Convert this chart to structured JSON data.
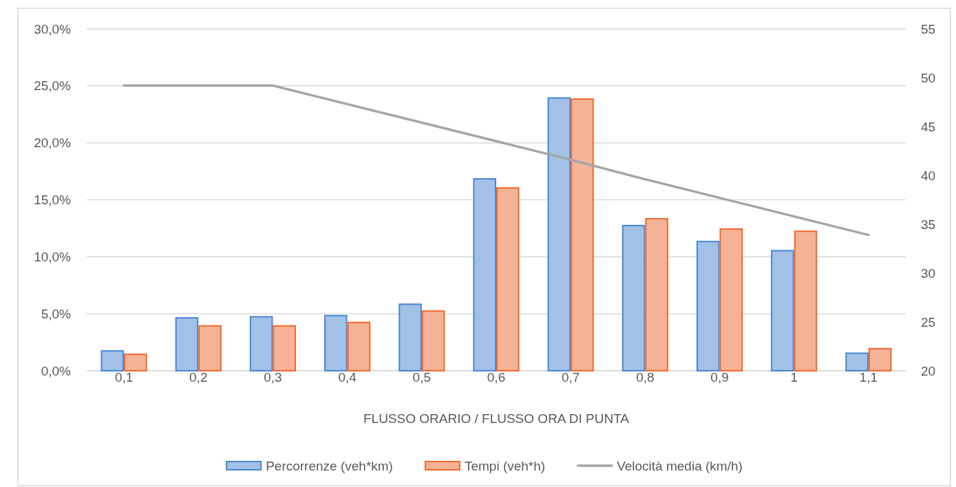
{
  "chart_data": {
    "type": "bar",
    "xlabel": "FLUSSO ORARIO / FLUSSO ORA DI PUNTA",
    "categories": [
      "0,1",
      "0,2",
      "0,3",
      "0,4",
      "0,5",
      "0,6",
      "0,7",
      "0,8",
      "0,9",
      "1",
      "1,1"
    ],
    "series": [
      {
        "name": "Percorrenze (veh*km)",
        "color": "#a3c1e6",
        "values": [
          1.8,
          4.7,
          4.8,
          4.9,
          5.9,
          16.9,
          24.0,
          12.8,
          11.4,
          10.6,
          1.6
        ]
      },
      {
        "name": "Tempi (veh*h)",
        "color": "#f4b396",
        "values": [
          1.5,
          4.0,
          4.0,
          4.3,
          5.3,
          16.1,
          23.9,
          13.4,
          12.5,
          12.3,
          2.0
        ]
      },
      {
        "name": "Velocità media (km/h)",
        "type": "line",
        "axis": "y2",
        "color": "#a5a5a5",
        "values": [
          49.2,
          49.2,
          49.2,
          47.3,
          45.4,
          43.5,
          41.6,
          39.6,
          37.7,
          35.8,
          33.9
        ]
      }
    ],
    "ylim": [
      0,
      30
    ],
    "yticks": [
      {
        "value": 0,
        "label": "0,0%"
      },
      {
        "value": 5,
        "label": "5,0%"
      },
      {
        "value": 10,
        "label": "10,0%"
      },
      {
        "value": 15,
        "label": "15,0%"
      },
      {
        "value": 20,
        "label": "20,0%"
      },
      {
        "value": 25,
        "label": "25,0%"
      },
      {
        "value": 30,
        "label": "30,0%"
      }
    ],
    "y2lim": [
      20,
      55
    ],
    "y2ticks": [
      20,
      25,
      30,
      35,
      40,
      45,
      50,
      55
    ],
    "grid": "y",
    "legend": "bottom"
  }
}
